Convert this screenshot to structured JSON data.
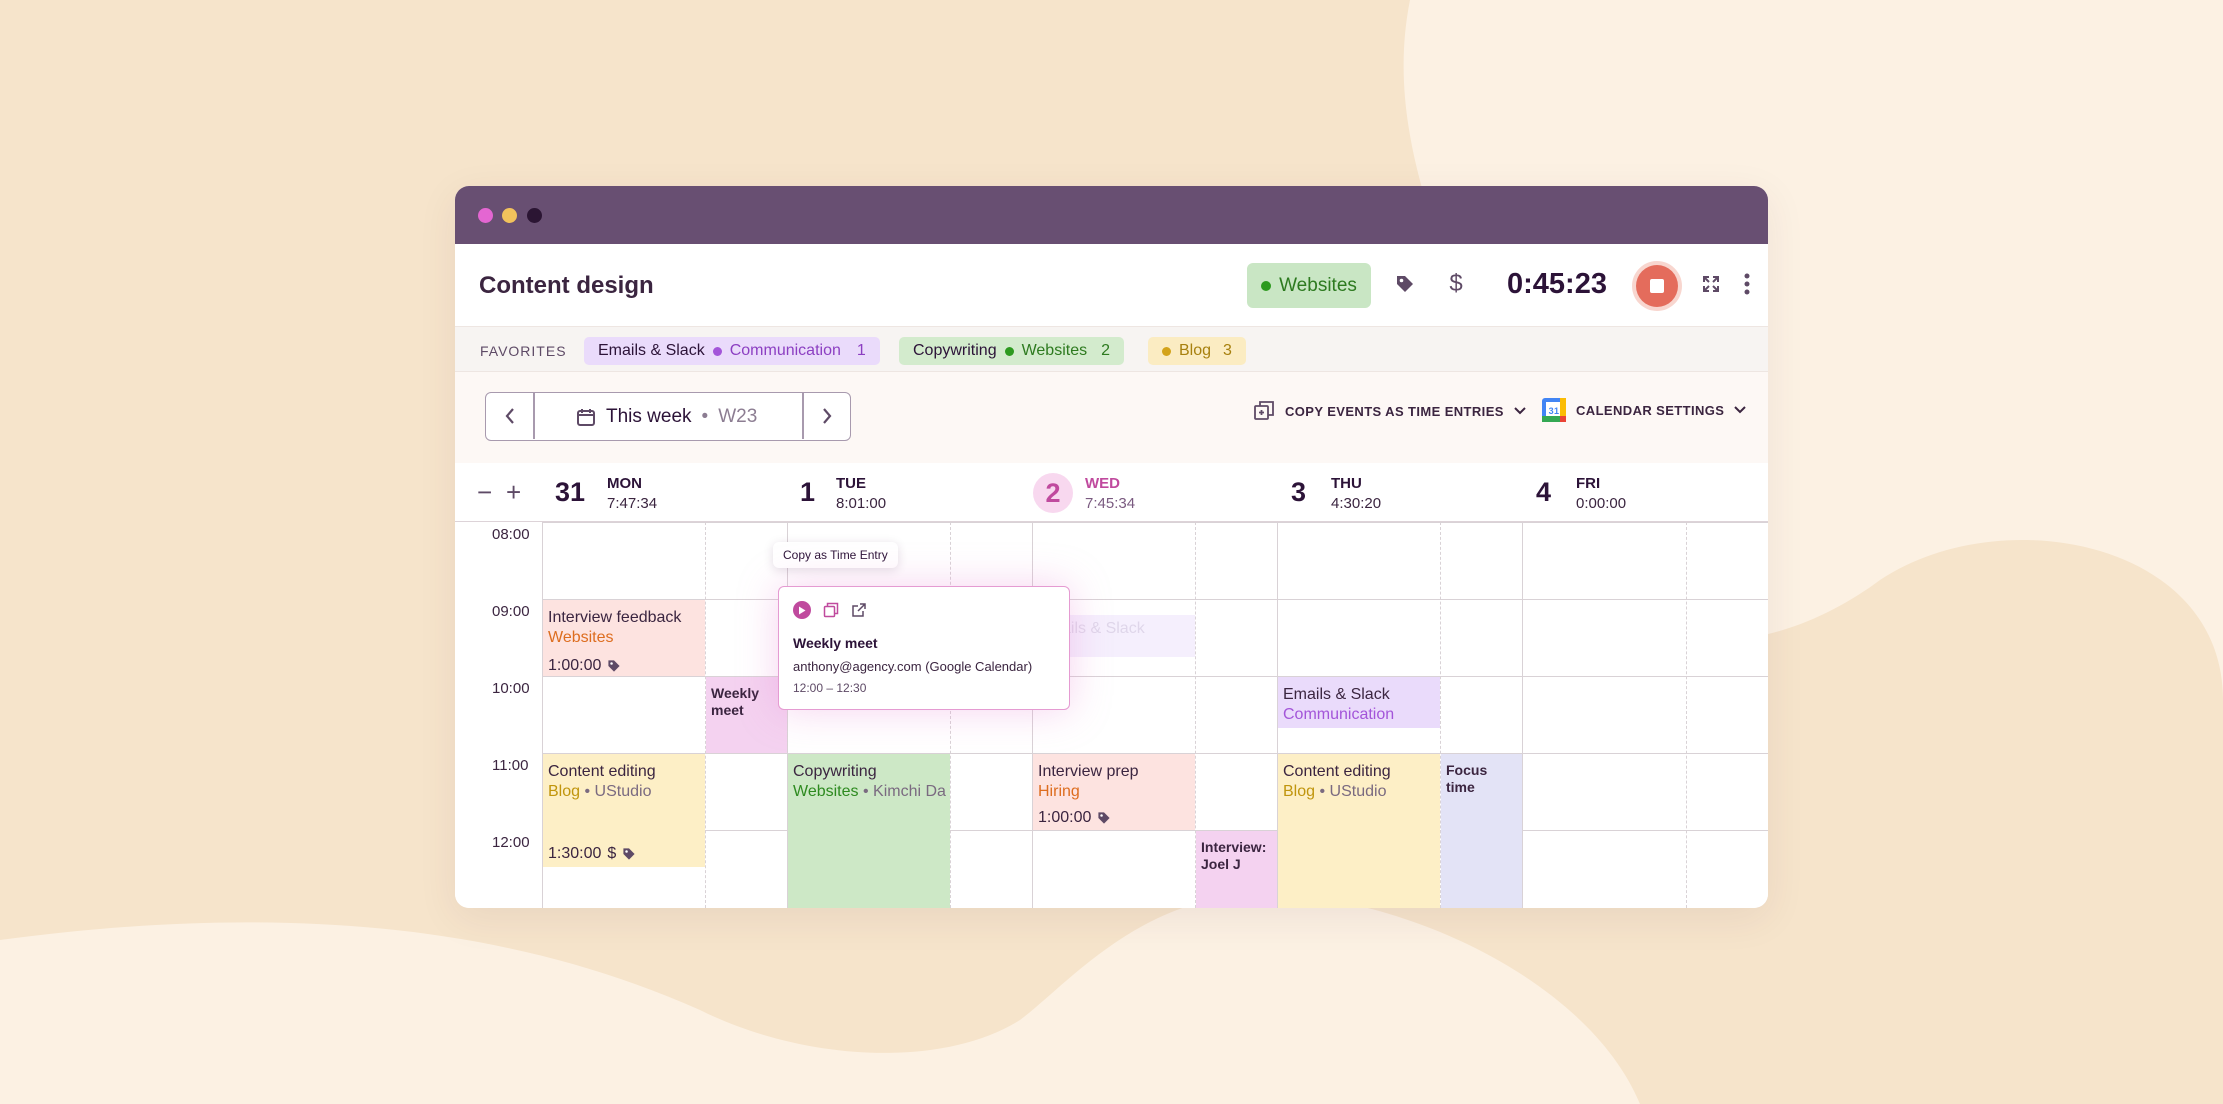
{
  "colors": {
    "background": "#fcf1e3",
    "blob": "#f6e4cb",
    "titlebar": "#684f72",
    "accent_pink": "#c04a9e",
    "stop_red": "#e46c5c"
  },
  "window_controls": [
    "pink-dot",
    "yellow-dot",
    "dark-dot"
  ],
  "topbar": {
    "title": "Content design",
    "project": "Websites",
    "timer": "0:45:23",
    "icons": [
      "tag-icon",
      "dollar-icon",
      "stop-icon",
      "expand-icon",
      "more-icon"
    ],
    "dollar_glyph": "$"
  },
  "favorites": {
    "label": "FAVORITES",
    "items": [
      {
        "name": "Emails & Slack",
        "project": "Communication",
        "count": "1",
        "color": "#a355d9"
      },
      {
        "name": "Copywriting",
        "project": "Websites",
        "count": "2",
        "color": "#2d9a1f"
      },
      {
        "name": "",
        "project": "Blog",
        "count": "3",
        "color": "#d3a31a"
      }
    ]
  },
  "toolbar": {
    "week_label": "This week",
    "week_sep": "•",
    "week_code": "W23",
    "copy_events": "COPY EVENTS AS TIME ENTRIES",
    "calendar_settings": "CALENDAR SETTINGS",
    "calendar_icon_day": "31"
  },
  "zoom": {
    "minus": "−",
    "plus": "+"
  },
  "days": [
    {
      "num": "31",
      "name": "MON",
      "time": "7:47:34",
      "today": false
    },
    {
      "num": "1",
      "name": "TUE",
      "time": "8:01:00",
      "today": false
    },
    {
      "num": "2",
      "name": "WED",
      "time": "7:45:34",
      "today": true
    },
    {
      "num": "3",
      "name": "THU",
      "time": "4:30:20",
      "today": false
    },
    {
      "num": "4",
      "name": "FRI",
      "time": "0:00:00",
      "today": false
    }
  ],
  "hours": [
    "08:00",
    "09:00",
    "10:00",
    "11:00",
    "12:00"
  ],
  "events": {
    "interview_feedback": {
      "title": "Interview feedback",
      "project": "Websites",
      "duration": "1:00:00"
    },
    "weekly_meet_mon": {
      "title": "Weekly meet"
    },
    "content_editing_mon": {
      "title": "Content editing",
      "project": "Blog",
      "client": "UStudio",
      "duration": "1:30:00",
      "dollar": "$"
    },
    "copywriting_tue": {
      "title": "Copywriting",
      "project": "Websites",
      "client": "Kimchi Da"
    },
    "emails_slack_wed": {
      "title": "Emails & Slack"
    },
    "interview_prep": {
      "title": "Interview prep",
      "project": "Hiring",
      "duration": "1:00:00"
    },
    "interview_joel": {
      "title": "Interview: Joel J"
    },
    "emails_slack_thu": {
      "title": "Emails & Slack",
      "project": "Communication"
    },
    "content_editing_thu": {
      "title": "Content editing",
      "project": "Blog",
      "client": "UStudio"
    },
    "focus_time": {
      "title": "Focus time"
    }
  },
  "tooltip": "Copy as Time Entry",
  "popup": {
    "title": "Weekly meet",
    "line1": "anthony@agency.com (Google Calendar)",
    "line2": "12:00 – 12:30"
  },
  "bullet": "•"
}
